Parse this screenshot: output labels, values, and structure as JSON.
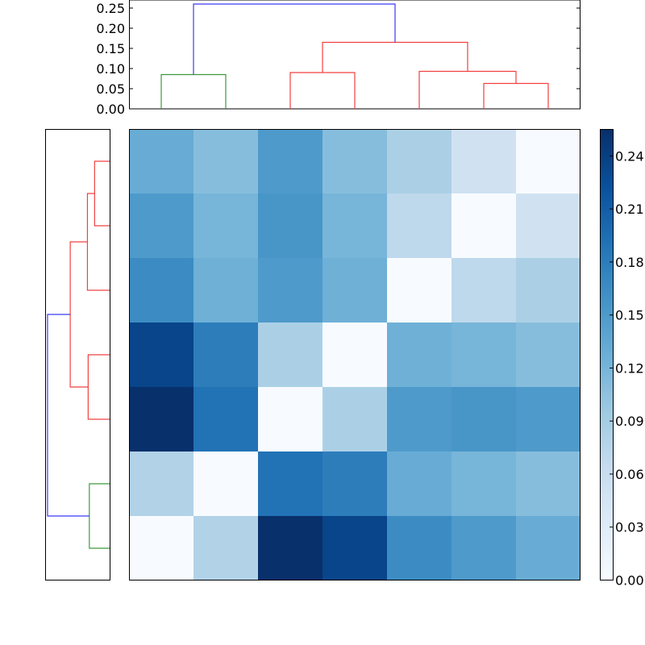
{
  "chart_data": {
    "type": "heatmap",
    "title": "",
    "description": "Clustered distance matrix heatmap with top and left dendrograms and colorbar",
    "heatmap": {
      "rows": 7,
      "cols": 7,
      "values": [
        [
          0.13,
          0.11,
          0.15,
          0.11,
          0.085,
          0.05,
          0.0
        ],
        [
          0.15,
          0.12,
          0.155,
          0.12,
          0.07,
          0.0,
          0.05
        ],
        [
          0.165,
          0.125,
          0.15,
          0.125,
          0.0,
          0.07,
          0.085
        ],
        [
          0.235,
          0.18,
          0.085,
          0.0,
          0.125,
          0.12,
          0.11
        ],
        [
          0.255,
          0.19,
          0.0,
          0.085,
          0.15,
          0.155,
          0.15
        ],
        [
          0.08,
          0.0,
          0.19,
          0.18,
          0.13,
          0.12,
          0.11
        ],
        [
          0.0,
          0.08,
          0.255,
          0.235,
          0.165,
          0.15,
          0.13
        ]
      ],
      "colormap": "Blues",
      "vmin": 0.0,
      "vmax": 0.255,
      "xticks": [],
      "yticks": []
    },
    "colorbar": {
      "ticks": [
        "0.00",
        "0.03",
        "0.06",
        "0.09",
        "0.12",
        "0.15",
        "0.18",
        "0.21",
        "0.24"
      ],
      "range": [
        0.0,
        0.255
      ]
    },
    "top_dendrogram": {
      "ylim": [
        0.0,
        0.27
      ],
      "yticks": [
        "0.00",
        "0.05",
        "0.10",
        "0.15",
        "0.20",
        "0.25"
      ],
      "links": [
        {
          "x": [
            1,
            2
          ],
          "height": 0.085,
          "color": "green"
        },
        {
          "x": [
            3,
            4
          ],
          "height": 0.09,
          "color": "red"
        },
        {
          "x": [
            6,
            7
          ],
          "height": 0.063,
          "color": "red"
        },
        {
          "x": [
            5,
            "6-7"
          ],
          "height": 0.093,
          "color": "red"
        },
        {
          "x": [
            "3-4",
            "5-7"
          ],
          "height": 0.165,
          "color": "red"
        },
        {
          "x": [
            "1-2",
            "3-7"
          ],
          "height": 0.26,
          "color": "blue"
        }
      ]
    },
    "left_dendrogram": {
      "links": [
        {
          "rows": [
            1,
            2
          ],
          "depth": 0.063,
          "color": "red"
        },
        {
          "rows": [
            "1-2",
            3
          ],
          "depth": 0.093,
          "color": "red"
        },
        {
          "rows": [
            4,
            5
          ],
          "depth": 0.09,
          "color": "red"
        },
        {
          "rows": [
            "1-3",
            "4-5"
          ],
          "depth": 0.165,
          "color": "red"
        },
        {
          "rows": [
            6,
            7
          ],
          "depth": 0.085,
          "color": "green"
        },
        {
          "rows": [
            "1-5",
            "6-7"
          ],
          "depth": 0.26,
          "color": "blue"
        }
      ]
    },
    "colors": {
      "dendro_blue": "#0000ff",
      "dendro_red": "#ff0000",
      "dendro_green": "#008000"
    }
  }
}
